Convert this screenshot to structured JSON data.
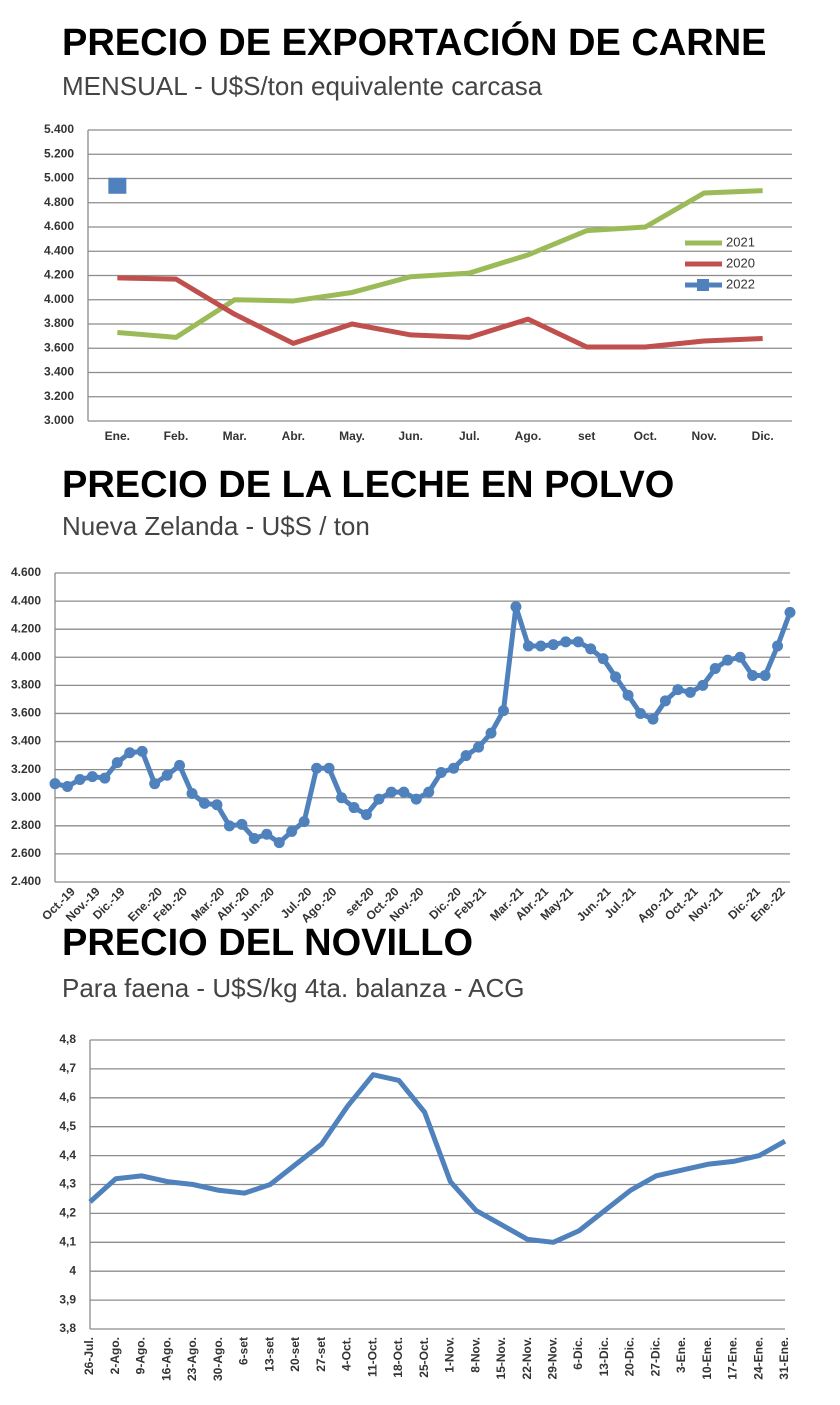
{
  "chart_data": [
    {
      "type": "line",
      "title": "PRECIO DE EXPORTACIÓN DE CARNE",
      "subtitle": "MENSUAL - U$S/ton equivalente carcasa",
      "categories": [
        "Ene.",
        "Feb.",
        "Mar.",
        "Abr.",
        "May.",
        "Jun.",
        "Jul.",
        "Ago.",
        "set",
        "Oct.",
        "Nov.",
        "Dic."
      ],
      "series": [
        {
          "name": "2021",
          "color": "#9bbb59",
          "values": [
            3730,
            3690,
            4000,
            3990,
            4060,
            4190,
            4220,
            4370,
            4570,
            4600,
            4880,
            4900
          ]
        },
        {
          "name": "2020",
          "color": "#c0504d",
          "values": [
            4180,
            4170,
            3880,
            3640,
            3800,
            3710,
            3690,
            3840,
            3610,
            3610,
            3660,
            3680
          ]
        },
        {
          "name": "2022",
          "color": "#4f81bd",
          "marker": "square",
          "values": [
            4940,
            null,
            null,
            null,
            null,
            null,
            null,
            null,
            null,
            null,
            null,
            null
          ]
        }
      ],
      "ylim": [
        3000,
        5400
      ],
      "yticks": [
        {
          "value": 3000,
          "label": "3.000"
        },
        {
          "value": 3200,
          "label": "3.200"
        },
        {
          "value": 3400,
          "label": "3.400"
        },
        {
          "value": 3600,
          "label": "3.600"
        },
        {
          "value": 3800,
          "label": "3.800"
        },
        {
          "value": 4000,
          "label": "4.000"
        },
        {
          "value": 4200,
          "label": "4.200"
        },
        {
          "value": 4400,
          "label": "4.400"
        },
        {
          "value": 4600,
          "label": "4.600"
        },
        {
          "value": 4800,
          "label": "4.800"
        },
        {
          "value": 5000,
          "label": "5.000"
        },
        {
          "value": 5200,
          "label": "5.200"
        },
        {
          "value": 5400,
          "label": "5.400"
        }
      ],
      "grid": true,
      "legend": "right"
    },
    {
      "type": "line",
      "title": "PRECIO DE LA LECHE EN POLVO",
      "subtitle": "Nueva Zelanda - U$S / ton",
      "categories": [
        null,
        "Oct.-19",
        null,
        "Nov.-19",
        null,
        "Dic.-19",
        null,
        null,
        "Ene.-20",
        null,
        "Feb.-20",
        null,
        null,
        "Mar.-20",
        null,
        "Abr.-20",
        null,
        "Jun.-20",
        null,
        null,
        "Jul.-20",
        null,
        "Ago.-20",
        null,
        null,
        "set-20",
        null,
        "Oct.-20",
        null,
        "Nov.-20",
        null,
        null,
        "Dic.-20",
        null,
        "Feb-21",
        null,
        null,
        "Mar.-21",
        null,
        "Abr.-21",
        null,
        "May-21",
        null,
        null,
        "Jun.-21",
        null,
        "Jul.-21",
        null,
        null,
        "Ago.-21",
        null,
        "Oct.-21",
        null,
        "Nov.-21",
        null,
        null,
        "Dic.-21",
        null,
        "Ene.-22",
        null
      ],
      "series": [
        {
          "name": "Leche en polvo",
          "color": "#4f81bd",
          "marker": "circle",
          "values": [
            3100,
            3080,
            3130,
            3150,
            3140,
            3250,
            3320,
            3330,
            3100,
            3160,
            3230,
            3030,
            2960,
            2950,
            2800,
            2810,
            2710,
            2740,
            2680,
            2760,
            2830,
            3210,
            3210,
            3000,
            2930,
            2880,
            2990,
            3040,
            3040,
            2990,
            3040,
            3180,
            3210,
            3300,
            3360,
            3460,
            3620,
            4360,
            4080,
            4080,
            4090,
            4110,
            4110,
            4060,
            3990,
            3860,
            3730,
            3600,
            3560,
            3690,
            3770,
            3750,
            3800,
            3920,
            3980,
            4000,
            3870,
            3870,
            4080,
            4320
          ]
        }
      ],
      "ylim": [
        2400,
        4600
      ],
      "yticks": [
        {
          "value": 2400,
          "label": "2.400"
        },
        {
          "value": 2600,
          "label": "2.600"
        },
        {
          "value": 2800,
          "label": "2.800"
        },
        {
          "value": 3000,
          "label": "3.000"
        },
        {
          "value": 3200,
          "label": "3.200"
        },
        {
          "value": 3400,
          "label": "3.400"
        },
        {
          "value": 3600,
          "label": "3.600"
        },
        {
          "value": 3800,
          "label": "3.800"
        },
        {
          "value": 4000,
          "label": "4.000"
        },
        {
          "value": 4200,
          "label": "4.200"
        },
        {
          "value": 4400,
          "label": "4.400"
        },
        {
          "value": 4600,
          "label": "4.600"
        }
      ],
      "grid": true
    },
    {
      "type": "line",
      "title": "PRECIO DEL NOVILLO",
      "subtitle": "Para faena - U$S/kg 4ta. balanza - ACG",
      "categories": [
        "26-Jul.",
        "2-Ago.",
        "9-Ago.",
        "16-Ago.",
        "23-Ago.",
        "30-Ago.",
        "6-set",
        "13-set",
        "20-set",
        "27-set",
        "4-Oct.",
        "11-Oct.",
        "18-Oct.",
        "25-Oct.",
        "1-Nov.",
        "8-Nov.",
        "15-Nov.",
        "22-Nov.",
        "29-Nov.",
        "6-Dic.",
        "13-Dic.",
        "20-Dic.",
        "27-Dic.",
        "3-Ene.",
        "10-Ene.",
        "17-Ene.",
        "24-Ene.",
        "31-Ene."
      ],
      "series": [
        {
          "name": "Novillo",
          "color": "#4f81bd",
          "values": [
            4.24,
            4.32,
            4.33,
            4.31,
            4.3,
            4.28,
            4.27,
            4.3,
            4.37,
            4.44,
            4.57,
            4.68,
            4.66,
            4.55,
            4.31,
            4.21,
            4.16,
            4.11,
            4.1,
            4.14,
            4.21,
            4.28,
            4.33,
            4.35,
            4.37,
            4.38,
            4.4,
            4.45
          ]
        }
      ],
      "ylim": [
        3.8,
        4.8
      ],
      "yticks": [
        {
          "value": 3.8,
          "label": "3,8"
        },
        {
          "value": 3.9,
          "label": "3,9"
        },
        4,
        {
          "value": 4.1,
          "label": "4,1"
        },
        {
          "value": 4.2,
          "label": "4,2"
        },
        {
          "value": 4.3,
          "label": "4,3"
        },
        {
          "value": 4.4,
          "label": "4,4"
        },
        {
          "value": 4.5,
          "label": "4,5"
        },
        {
          "value": 4.6,
          "label": "4,6"
        },
        {
          "value": 4.7,
          "label": "4,7"
        },
        {
          "value": 4.8,
          "label": "4,8"
        }
      ],
      "grid": true
    }
  ]
}
